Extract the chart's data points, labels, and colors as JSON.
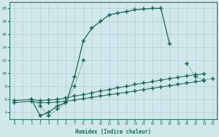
{
  "xlabel": "Humidex (Indice chaleur)",
  "bg_color": "#d0e8ec",
  "grid_color": "#b0cdd4",
  "line_color": "#1a6b5a",
  "xlim": [
    -0.5,
    23.5
  ],
  "ylim": [
    3,
    21
  ],
  "yticks": [
    4,
    6,
    8,
    10,
    12,
    14,
    16,
    18,
    20
  ],
  "xticks": [
    0,
    1,
    2,
    3,
    4,
    5,
    6,
    7,
    8,
    9,
    10,
    11,
    12,
    13,
    14,
    15,
    16,
    17,
    18,
    19,
    20,
    21,
    22,
    23
  ],
  "curve1_x": [
    2,
    3,
    4,
    5,
    6,
    7,
    8,
    9,
    10,
    11,
    12,
    13,
    14,
    15,
    16,
    17,
    18
  ],
  "curve1_y": [
    6.0,
    3.5,
    4.0,
    5.0,
    5.5,
    9.5,
    15.0,
    17.0,
    18.0,
    19.0,
    19.3,
    19.5,
    19.8,
    19.9,
    20.0,
    20.0,
    14.5
  ],
  "curve2_x": [
    0,
    2,
    3,
    4,
    5,
    6,
    7,
    8,
    20,
    21,
    22,
    23
  ],
  "curve2_y": [
    5.8,
    6.0,
    5.0,
    3.5,
    4.5,
    5.5,
    8.0,
    12.0,
    11.5,
    9.5,
    9.0,
    9.2
  ],
  "curve3a_x": [
    0,
    2,
    3,
    4,
    5,
    6,
    7,
    8,
    9,
    10,
    11,
    12,
    13,
    14,
    15,
    16,
    17,
    18,
    19,
    20,
    21,
    22
  ],
  "curve3a_y": [
    5.8,
    6.0,
    5.8,
    5.9,
    6.0,
    6.2,
    6.5,
    6.7,
    7.0,
    7.3,
    7.5,
    7.8,
    8.0,
    8.3,
    8.5,
    8.7,
    9.0,
    9.2,
    9.4,
    9.6,
    9.8,
    9.9
  ],
  "curve3b_x": [
    0,
    2,
    3,
    4,
    5,
    6,
    7,
    8,
    9,
    10,
    11,
    12,
    13,
    14,
    15,
    16,
    17,
    18,
    19,
    20,
    21,
    22
  ],
  "curve3b_y": [
    5.5,
    5.7,
    5.5,
    5.5,
    5.6,
    5.7,
    5.9,
    6.1,
    6.3,
    6.5,
    6.7,
    6.9,
    7.1,
    7.3,
    7.5,
    7.7,
    7.9,
    8.1,
    8.3,
    8.5,
    8.7,
    8.9
  ]
}
